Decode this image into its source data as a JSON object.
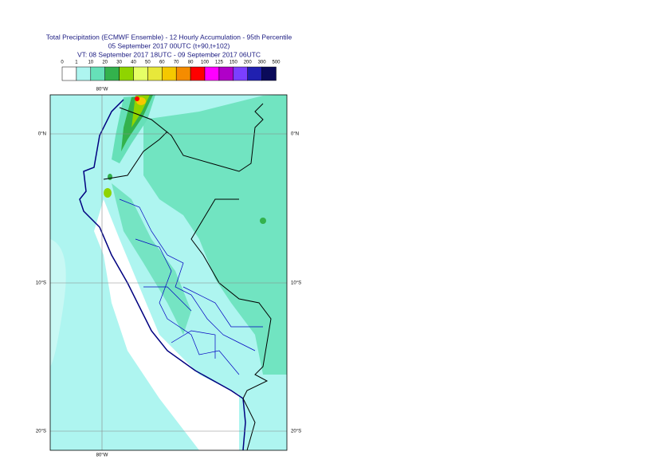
{
  "header": {
    "title": "Total Precipitation (ECMWF Ensemble) - 12 Hourly Accumulation - 95th Percentile",
    "base_time": "05 September 2017 00UTC (t+90,t+102)",
    "valid_time": "VT: 08 September 2017 18UTC - 09 September 2017 06UTC"
  },
  "legend": {
    "bounds": [
      0,
      1,
      10,
      20,
      30,
      40,
      50,
      60,
      70,
      80,
      100,
      125,
      150,
      200,
      300,
      500
    ],
    "colors": [
      "#ffffff",
      "#aef5f0",
      "#66e0b8",
      "#33b24c",
      "#8fd400",
      "#e6ff66",
      "#e8e83a",
      "#f5c800",
      "#f58c00",
      "#ff0000",
      "#ff00ff",
      "#b000c8",
      "#7b3fff",
      "#2020b0",
      "#0a0a5a"
    ]
  },
  "map": {
    "lon_labels": [
      "80°W"
    ],
    "lat_labels": [
      "0°N",
      "10°S",
      "20°S"
    ]
  }
}
